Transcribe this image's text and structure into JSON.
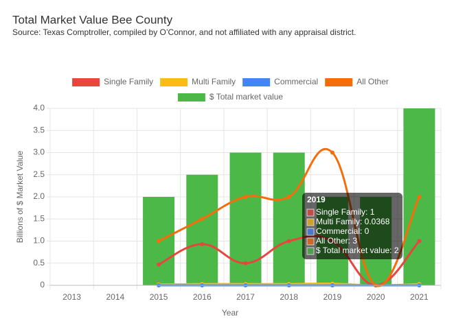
{
  "chart_data": {
    "type": "bar",
    "title": "Total Market Value Bee County",
    "subtitle": "Source: Texas Comptroller, compiled by O’Connor, and not affiliated with any appraisal district.",
    "x_label": "Year",
    "y_label": "Billions of $ Market Value",
    "categories": [
      "2013",
      "2014",
      "2015",
      "2016",
      "2017",
      "2018",
      "2019",
      "2020",
      "2021"
    ],
    "ylim": [
      0,
      4
    ],
    "yticks": [
      0,
      0.5,
      {
        "value": 1,
        "label": "1.0"
      },
      1.5,
      {
        "value": 2,
        "label": "2.0"
      },
      2.5,
      {
        "value": 3,
        "label": "3.0"
      },
      3.5,
      {
        "value": 4,
        "label": "4.0"
      }
    ],
    "grid": true,
    "legend": "top",
    "series": [
      {
        "name": "Single Family",
        "type": "line",
        "color": "#e8453c",
        "values": [
          null,
          null,
          0.47,
          0.93,
          0.5,
          1.0,
          1,
          0,
          1.0
        ]
      },
      {
        "name": "Multi Family",
        "type": "line",
        "color": "#f9bb14",
        "values": [
          null,
          null,
          0.02,
          0.03,
          0.03,
          0.03,
          0.0368,
          0,
          0.03
        ]
      },
      {
        "name": "Commercial",
        "type": "line",
        "color": "#4285f4",
        "values": [
          null,
          null,
          0,
          0,
          0,
          0,
          0,
          0,
          0
        ]
      },
      {
        "name": "All Other",
        "type": "line",
        "color": "#f56d0a",
        "values": [
          null,
          null,
          1.0,
          1.5,
          2.0,
          2.0,
          3,
          0,
          2.0
        ]
      },
      {
        "name": "$ Total market value",
        "type": "bar",
        "color": "#4cb848",
        "values": [
          null,
          null,
          2,
          2.5,
          3,
          3,
          2,
          2,
          4
        ]
      }
    ],
    "tooltip": {
      "title": "2019",
      "lines": [
        "Single Family: 1",
        "Multi Family: 0.0368",
        "Commercial: 0",
        "All Other: 3",
        "$ Total market value: 2"
      ]
    }
  }
}
